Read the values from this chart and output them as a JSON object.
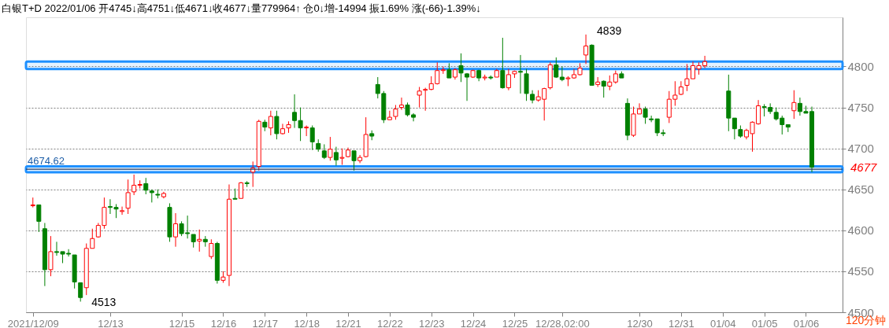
{
  "chart_data": {
    "type": "candlestick",
    "title": "白银T+D 2022/01/06 开4745↓高4751↓低4671↓收4677↓量779964↑ 仓0↓增-14994 振1.69% 涨(-66)-1.39%↓",
    "categories": [
      "2021/12/09",
      null,
      null,
      null,
      null,
      null,
      null,
      null,
      null,
      null,
      null,
      null,
      null,
      "12/13",
      null,
      null,
      null,
      null,
      null,
      null,
      null,
      null,
      null,
      null,
      null,
      "12/15",
      null,
      null,
      null,
      null,
      null,
      null,
      "12/16",
      null,
      null,
      null,
      null,
      null,
      null,
      "12/17",
      null,
      null,
      null,
      null,
      null,
      null,
      "12/18",
      null,
      null,
      null,
      null,
      null,
      null,
      "12/21",
      null,
      null,
      null,
      null,
      null,
      null,
      "12/22",
      null,
      null,
      null,
      null,
      null,
      null,
      "12/23",
      null,
      null,
      null,
      null,
      null,
      null,
      "12/24",
      null,
      null,
      null,
      null,
      null,
      null,
      "12/25",
      null,
      null,
      null,
      null,
      null,
      null,
      null,
      "12/28,02:00",
      null,
      null,
      null,
      null,
      null,
      null,
      null,
      null,
      null,
      null,
      null,
      null,
      "12/30",
      null,
      null,
      null,
      null,
      null,
      null,
      "12/31",
      null,
      null,
      null,
      null,
      null,
      null,
      "01/04",
      null,
      null,
      null,
      null,
      null,
      null,
      "01/05",
      null,
      null,
      null,
      null,
      null,
      null,
      "01/06",
      null,
      null,
      null,
      null,
      null
    ],
    "ohlc": [
      [
        4630,
        4640,
        4628,
        4631
      ],
      [
        4631,
        4631,
        4598,
        4611
      ],
      [
        4602,
        4609,
        4532,
        4552
      ],
      [
        4552,
        4593,
        4544,
        4574
      ],
      [
        4574,
        4586,
        4569,
        4573
      ],
      [
        4574,
        4574,
        4560,
        4571
      ],
      [
        4572,
        4577,
        4568,
        4571
      ],
      [
        4570,
        4570,
        4529,
        4537
      ],
      [
        4536,
        4536,
        4513,
        4518
      ],
      [
        4530,
        4584,
        4521,
        4578
      ],
      [
        4578,
        4602,
        4578,
        4590
      ],
      [
        4592,
        4609,
        4591,
        4606
      ],
      [
        4606,
        4640,
        4602,
        4628
      ],
      [
        4629,
        4638,
        4620,
        4628
      ],
      [
        4628,
        4632,
        4615,
        4626
      ],
      [
        4623,
        4629,
        4619,
        4624
      ],
      [
        4627,
        4662,
        4620,
        4646
      ],
      [
        4647,
        4668,
        4643,
        4655
      ],
      [
        4655,
        4661,
        4651,
        4656
      ],
      [
        4657,
        4664,
        4644,
        4649
      ],
      [
        4648,
        4650,
        4634,
        4646
      ],
      [
        4644,
        4650,
        4639,
        4643
      ],
      [
        4641,
        4647,
        4639,
        4645
      ],
      [
        4628,
        4633,
        4586,
        4592
      ],
      [
        4592,
        4621,
        4580,
        4608
      ],
      [
        4608,
        4611,
        4593,
        4596
      ],
      [
        4597,
        4618,
        4590,
        4596
      ],
      [
        4595,
        4595,
        4579,
        4586
      ],
      [
        4587,
        4601,
        4574,
        4589
      ],
      [
        4589,
        4593,
        4580,
        4586
      ],
      [
        4568,
        4589,
        4565,
        4584
      ],
      [
        4584,
        4586,
        4535,
        4539
      ],
      [
        4539,
        4550,
        4536,
        4543
      ],
      [
        4545,
        4656,
        4532,
        4638
      ],
      [
        4639,
        4651,
        4638,
        4638
      ],
      [
        4639,
        4659,
        4639,
        4658
      ],
      [
        4658,
        4660,
        4653,
        4657
      ],
      [
        4671,
        4684,
        4653,
        4676
      ],
      [
        4678,
        4735,
        4673,
        4733
      ],
      [
        4732,
        4735,
        4721,
        4726
      ],
      [
        4725,
        4746,
        4716,
        4739
      ],
      [
        4739,
        4746,
        4711,
        4718
      ],
      [
        4718,
        4730,
        4717,
        4724
      ],
      [
        4725,
        4733,
        4719,
        4729
      ],
      [
        4744,
        4766,
        4725,
        4734
      ],
      [
        4734,
        4750,
        4709,
        4725
      ],
      [
        4725,
        4728,
        4715,
        4726
      ],
      [
        4725,
        4728,
        4698,
        4708
      ],
      [
        4706,
        4711,
        4696,
        4699
      ],
      [
        4697,
        4705,
        4687,
        4689
      ],
      [
        4689,
        4714,
        4685,
        4699
      ],
      [
        4695,
        4702,
        4679,
        4686
      ],
      [
        4688,
        4700,
        4680,
        4689
      ],
      [
        4690,
        4701,
        4689,
        4698
      ],
      [
        4697,
        4697,
        4673,
        4685
      ],
      [
        4685,
        4692,
        4682,
        4689
      ],
      [
        4690,
        4738,
        4689,
        4717
      ],
      [
        4718,
        4722,
        4710,
        4715
      ],
      [
        4778,
        4787,
        4761,
        4767
      ],
      [
        4767,
        4770,
        4731,
        4735
      ],
      [
        4735,
        4746,
        4735,
        4738
      ],
      [
        4739,
        4753,
        4735,
        4748
      ],
      [
        4750,
        4762,
        4747,
        4753
      ],
      [
        4753,
        4756,
        4739,
        4741
      ],
      [
        4741,
        4743,
        4733,
        4738
      ],
      [
        4765,
        4775,
        4750,
        4770
      ],
      [
        4771,
        4774,
        4746,
        4772
      ],
      [
        4772,
        4788,
        4771,
        4779
      ],
      [
        4779,
        4805,
        4778,
        4795
      ],
      [
        4795,
        4800,
        4791,
        4796
      ],
      [
        4796,
        4804,
        4786,
        4786
      ],
      [
        4787,
        4798,
        4784,
        4796
      ],
      [
        4801,
        4816,
        4781,
        4792
      ],
      [
        4791,
        4792,
        4758,
        4787
      ],
      [
        4787,
        4796,
        4786,
        4795
      ],
      [
        4795,
        4796,
        4782,
        4786
      ],
      [
        4786,
        4790,
        4783,
        4787
      ],
      [
        4787,
        4789,
        4784,
        4786
      ],
      [
        4787,
        4797,
        4787,
        4795
      ],
      [
        4795,
        4835,
        4773,
        4774
      ],
      [
        4774,
        4797,
        4771,
        4790
      ],
      [
        4791,
        4795,
        4786,
        4794
      ],
      [
        4794,
        4814,
        4767,
        4793
      ],
      [
        4791,
        4797,
        4758,
        4767
      ],
      [
        4766,
        4771,
        4755,
        4759
      ],
      [
        4759,
        4771,
        4757,
        4763
      ],
      [
        4760,
        4774,
        4734,
        4773
      ],
      [
        4774,
        4805,
        4772,
        4802
      ],
      [
        4802,
        4811,
        4786,
        4787
      ],
      [
        4787,
        4800,
        4782,
        4784
      ],
      [
        4785,
        4788,
        4776,
        4786
      ],
      [
        4786,
        4797,
        4785,
        4790
      ],
      [
        4790,
        4804,
        4789,
        4798
      ],
      [
        4814,
        4839,
        4803,
        4825
      ],
      [
        4826,
        4827,
        4777,
        4777
      ],
      [
        4778,
        4787,
        4775,
        4781
      ],
      [
        4782,
        4783,
        4762,
        4776
      ],
      [
        4776,
        4789,
        4771,
        4781
      ],
      [
        4781,
        4795,
        4779,
        4791
      ],
      [
        4791,
        4794,
        4786,
        4786
      ],
      [
        4755,
        4761,
        4710,
        4716
      ],
      [
        4716,
        4751,
        4714,
        4742
      ],
      [
        4742,
        4755,
        4742,
        4748
      ],
      [
        4748,
        4751,
        4730,
        4738
      ],
      [
        4736,
        4740,
        4732,
        4735
      ],
      [
        4736,
        4736,
        4715,
        4719
      ],
      [
        4719,
        4723,
        4715,
        4718
      ],
      [
        4738,
        4770,
        4731,
        4760
      ],
      [
        4760,
        4782,
        4752,
        4765
      ],
      [
        4766,
        4782,
        4765,
        4775
      ],
      [
        4777,
        4803,
        4770,
        4785
      ],
      [
        4785,
        4806,
        4785,
        4801
      ],
      [
        4797,
        4805,
        4790,
        4801
      ],
      [
        4801,
        4813,
        4798,
        4806
      ],
      null,
      null,
      null,
      [
        4770,
        4790,
        4721,
        4737
      ],
      [
        4737,
        4737,
        4711,
        4724
      ],
      [
        4723,
        4728,
        4713,
        4715
      ],
      [
        4714,
        4724,
        4711,
        4722
      ],
      [
        4718,
        4733,
        4696,
        4732
      ],
      [
        4730,
        4759,
        4729,
        4752
      ],
      [
        4751,
        4754,
        4739,
        4750
      ],
      [
        4750,
        4755,
        4742,
        4745
      ],
      [
        4744,
        4750,
        4734,
        4736
      ],
      [
        4737,
        4740,
        4717,
        4729
      ],
      [
        4729,
        4729,
        4720,
        4726
      ],
      [
        4746,
        4771,
        4736,
        4756
      ],
      [
        4755,
        4762,
        4740,
        4745
      ],
      [
        4745,
        4752,
        4743,
        4743
      ],
      [
        4745,
        4751,
        4671,
        4677
      ],
      null,
      null,
      null,
      null
    ],
    "colors": [
      "#ff0000",
      "#008000",
      "#008000",
      "#ff0000",
      "#008000",
      "#008000",
      "#008000",
      "#008000",
      "#008000",
      "#ff0000",
      "#ff0000",
      "#ff0000",
      "#ff0000",
      "#008000",
      "#008000",
      "#ff0000",
      "#ff0000",
      "#ff0000",
      "#ff0000",
      "#008000",
      "#008000",
      "#008000",
      "#ff0000",
      "#008000",
      "#ff0000",
      "#008000",
      "#008000",
      "#008000",
      "#ff0000",
      "#008000",
      "#ff0000",
      "#008000",
      "#ff0000",
      "#ff0000",
      "#008000",
      "#ff0000",
      "#008000",
      "#ff0000",
      "#ff0000",
      "#008000",
      "#ff0000",
      "#008000",
      "#ff0000",
      "#ff0000",
      "#008000",
      "#008000",
      "#ff0000",
      "#008000",
      "#008000",
      "#008000",
      "#ff0000",
      "#008000",
      "#ff0000",
      "#ff0000",
      "#008000",
      "#ff0000",
      "#ff0000",
      "#008000",
      "#008000",
      "#008000",
      "#ff0000",
      "#ff0000",
      "#ff0000",
      "#008000",
      "#008000",
      "#ff0000",
      "#ff0000",
      "#ff0000",
      "#ff0000",
      "#ff0000",
      "#008000",
      "#ff0000",
      "#008000",
      "#008000",
      "#ff0000",
      "#008000",
      "#ff0000",
      "#008000",
      "#ff0000",
      "#008000",
      "#ff0000",
      "#ff0000",
      "#008000",
      "#008000",
      "#008000",
      "#ff0000",
      "#ff0000",
      "#ff0000",
      "#008000",
      "#008000",
      "#ff0000",
      "#ff0000",
      "#ff0000",
      "#ff0000",
      "#008000",
      "#ff0000",
      "#008000",
      "#ff0000",
      "#ff0000",
      "#008000",
      "#008000",
      "#ff0000",
      "#ff0000",
      "#008000",
      "#008000",
      "#008000",
      "#008000",
      "#ff0000",
      "#ff0000",
      "#ff0000",
      "#ff0000",
      "#ff0000",
      "#ff0000",
      "#ff0000",
      null,
      null,
      null,
      "#008000",
      "#008000",
      "#008000",
      "#ff0000",
      "#ff0000",
      "#ff0000",
      "#008000",
      "#008000",
      "#008000",
      "#008000",
      "#008000",
      "#ff0000",
      "#008000",
      "#008000",
      "#008000",
      null,
      null,
      null,
      null
    ],
    "ylim": [
      4500,
      4860
    ],
    "yticks": [
      4500,
      4550,
      4600,
      4650,
      4700,
      4750,
      4800
    ],
    "grid": "y",
    "ref_lines": [
      {
        "axis": "y",
        "value": 4674.62,
        "label": "4674.62",
        "color": "#1f3864"
      }
    ],
    "bands": [
      {
        "axis": "y",
        "from": 4797,
        "to": 4806,
        "color": "#1e90ff"
      },
      {
        "axis": "y",
        "from": 4671,
        "to": 4678,
        "color": "#1e90ff"
      }
    ],
    "annotations": [
      "4839",
      "4513",
      "4677",
      "120分钟"
    ]
  }
}
